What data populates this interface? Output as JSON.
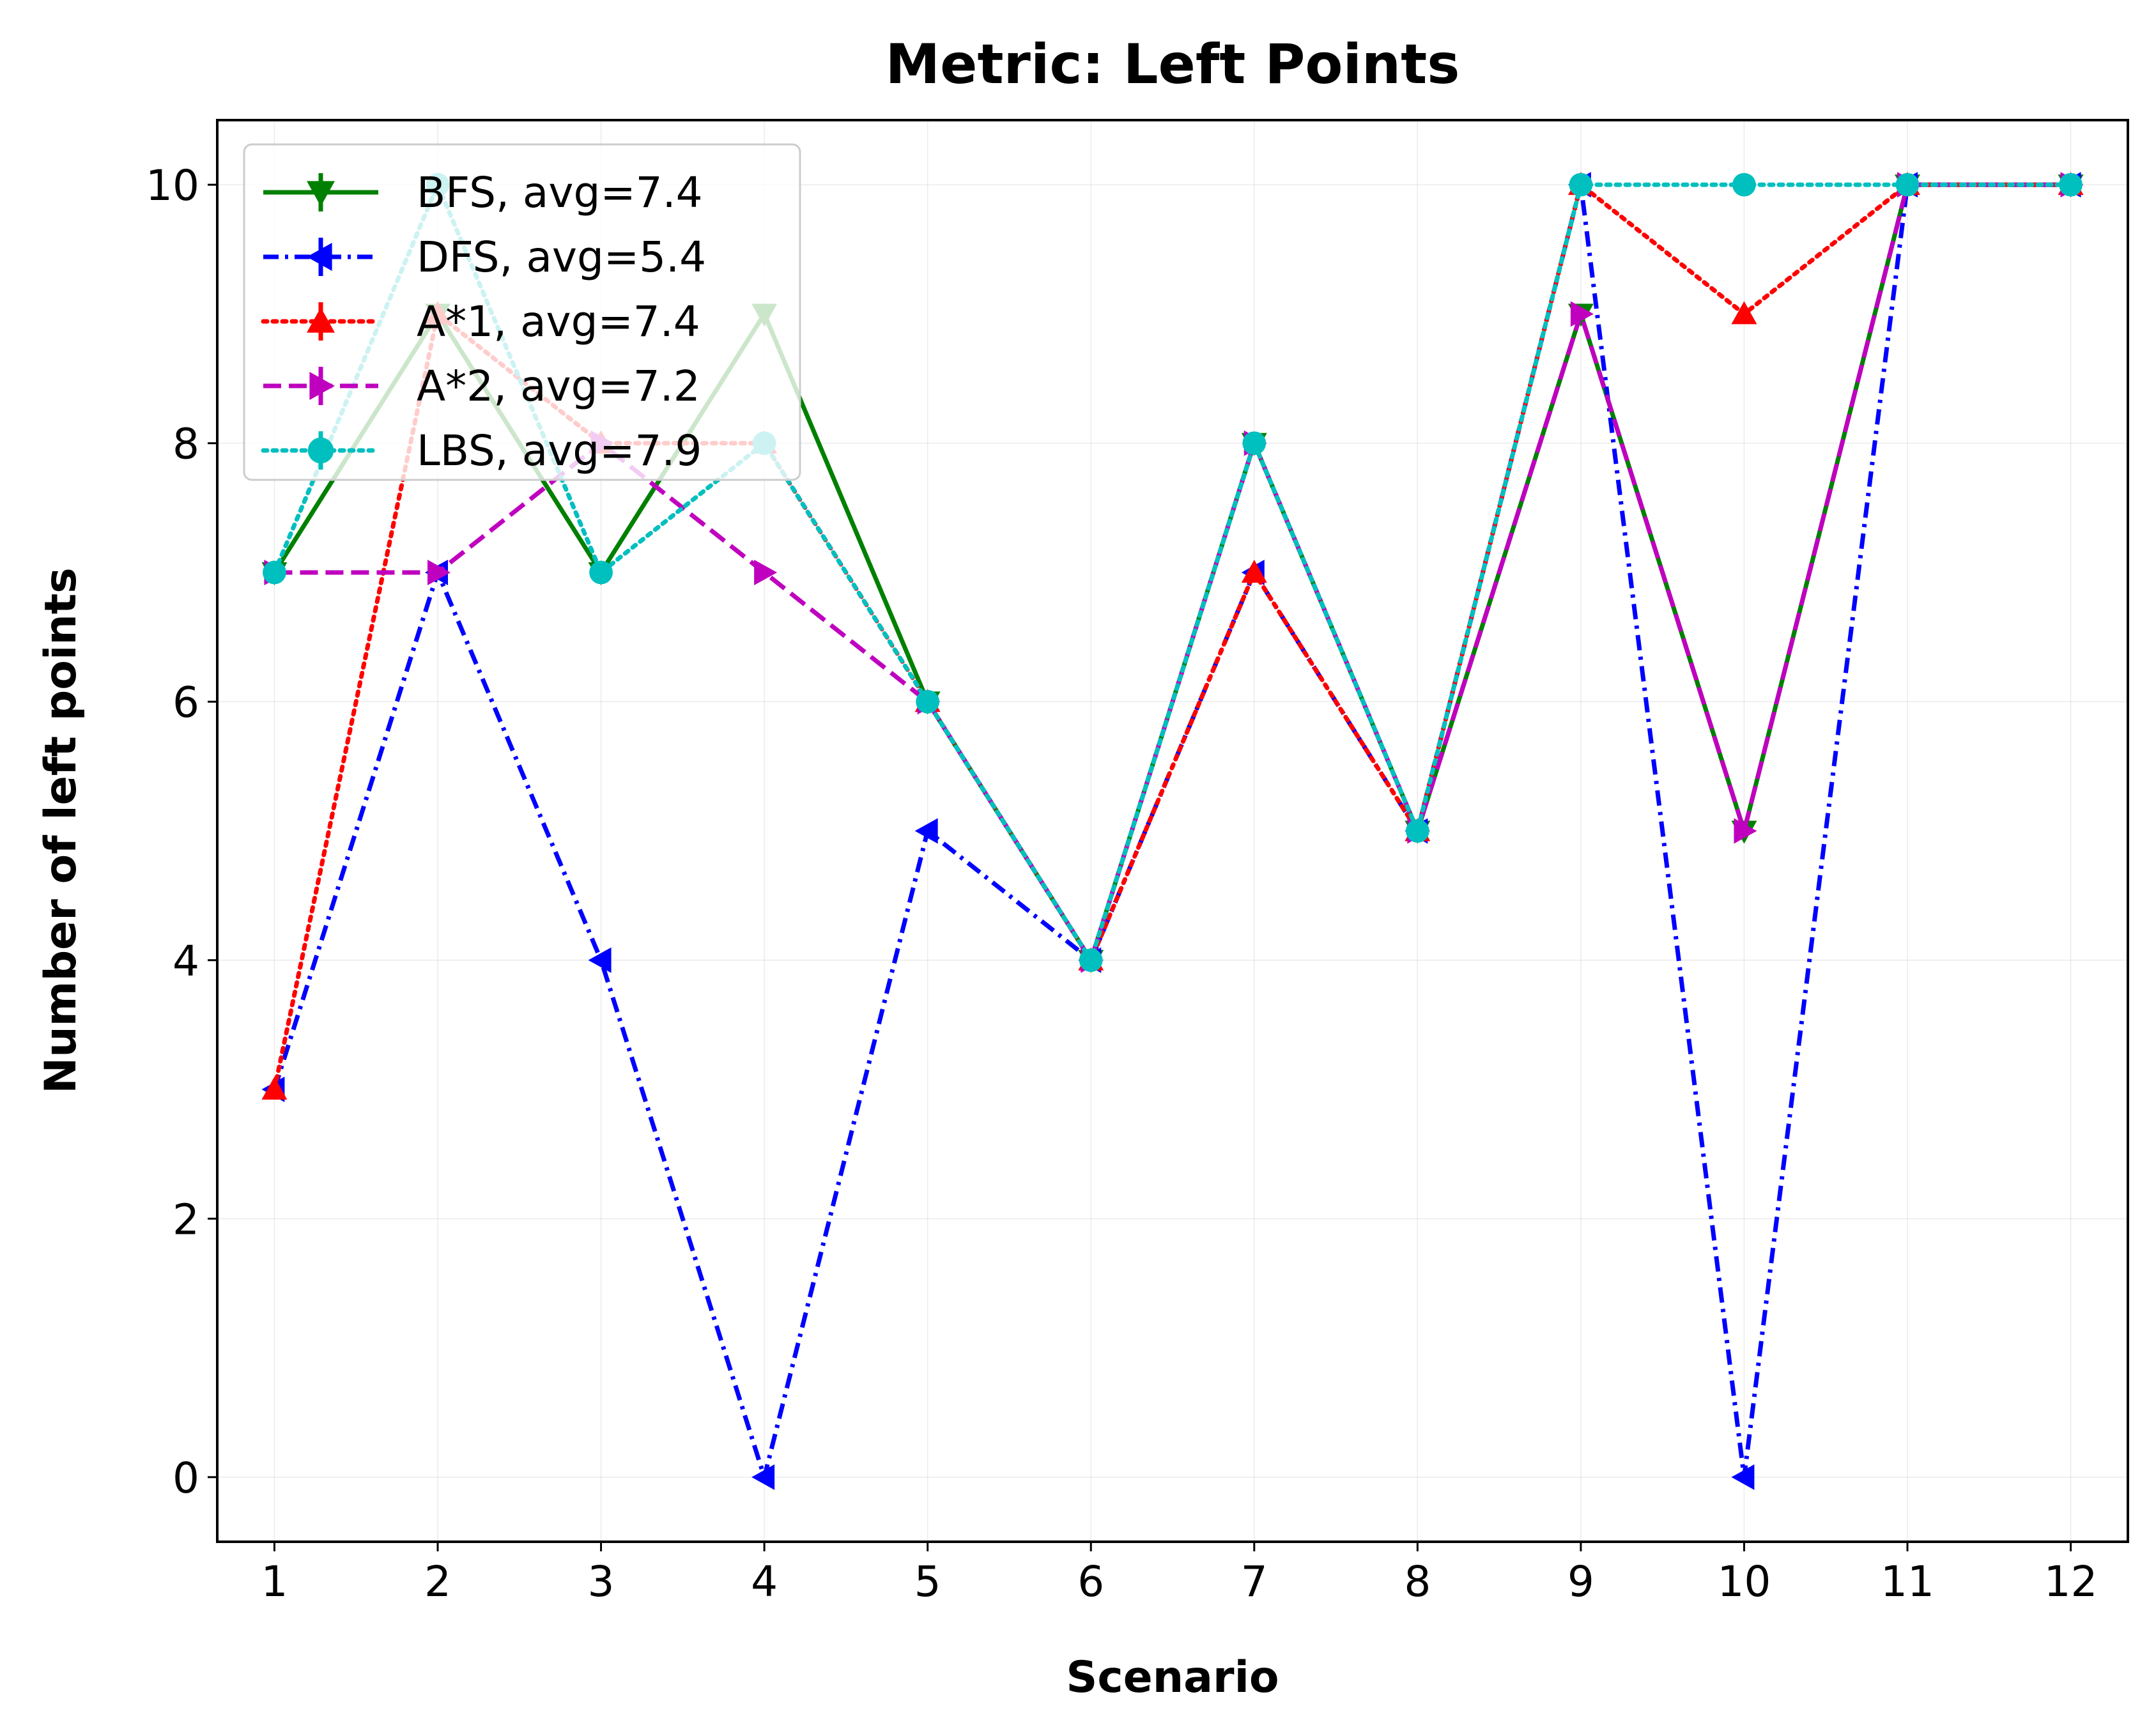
{
  "chart_data": {
    "type": "line",
    "title": "Metric: Left Points",
    "xlabel": "Scenario",
    "ylabel": "Number of left points",
    "x": [
      1,
      2,
      3,
      4,
      5,
      6,
      7,
      8,
      9,
      10,
      11,
      12
    ],
    "xlim": [
      0.65,
      12.35
    ],
    "ylim": [
      -0.5,
      10.5
    ],
    "yticks": [
      0,
      2,
      4,
      6,
      8,
      10
    ],
    "grid": true,
    "legend_position": "top-left",
    "series": [
      {
        "name": "BFS, avg=7.4",
        "values": [
          7,
          9,
          7,
          9,
          6,
          4,
          8,
          5,
          9,
          5,
          10,
          10
        ],
        "color": "#008000",
        "linestyle": "solid",
        "marker": "triangle-down"
      },
      {
        "name": "DFS, avg=5.4",
        "values": [
          3,
          7,
          4,
          0,
          5,
          4,
          7,
          5,
          10,
          0,
          10,
          10
        ],
        "color": "#0000ff",
        "linestyle": "dashdot",
        "marker": "triangle-left"
      },
      {
        "name": "A*1, avg=7.4",
        "values": [
          3,
          9,
          8,
          8,
          6,
          4,
          7,
          5,
          10,
          9,
          10,
          10
        ],
        "color": "#ff0000",
        "linestyle": "dotted",
        "marker": "triangle-up"
      },
      {
        "name": "A*2, avg=7.2",
        "values": [
          7,
          7,
          8,
          7,
          6,
          4,
          8,
          5,
          9,
          5,
          10,
          10
        ],
        "color": "#bf00bf",
        "linestyle": "dashed",
        "marker": "triangle-right"
      },
      {
        "name": "LBS, avg=7.9",
        "values": [
          7,
          10,
          7,
          8,
          6,
          4,
          8,
          5,
          10,
          10,
          10,
          10
        ],
        "color": "#00bfbf",
        "linestyle": "dotted",
        "marker": "circle"
      }
    ]
  }
}
